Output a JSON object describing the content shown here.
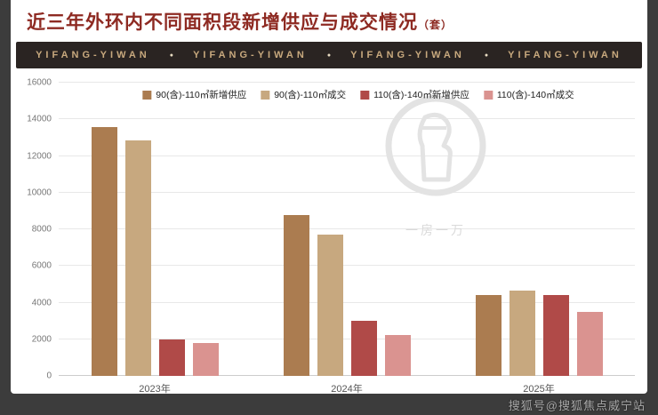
{
  "page": {
    "title": "近三年外环内不同面积段新增供应与成交情况",
    "title_suffix": "（套）",
    "banner_items": [
      "YIFANG-YIWAN",
      "YIFANG-YIWAN",
      "YIFANG-YIWAN",
      "YIFANG-YIWAN"
    ],
    "watermark_caption": "一房一万",
    "bottom_watermark": "搜狐号@搜狐焦点威宁站"
  },
  "colors": {
    "title": "#8e2a22",
    "banner_bg": "#2a2422",
    "banner_text": "#c8a97e",
    "page_bg": "#3c3c3c",
    "card_bg": "#ffffff",
    "series1": "#ab7c50",
    "series2": "#c7a87f",
    "series3": "#b04a48",
    "series4": "#da9390"
  },
  "chart_data": {
    "type": "bar",
    "title": "近三年外环内不同面积段新增供应与成交情况（套）",
    "categories": [
      "2023年",
      "2024年",
      "2025年"
    ],
    "series": [
      {
        "name": "90(含)-110㎡新增供应",
        "color": "#ab7c50",
        "values": [
          13600,
          8800,
          4400
        ]
      },
      {
        "name": "90(含)-110㎡成交",
        "color": "#c7a87f",
        "values": [
          12850,
          7700,
          4650
        ]
      },
      {
        "name": "110(含)-140㎡新增供应",
        "color": "#b04a48",
        "values": [
          2000,
          3000,
          4400
        ]
      },
      {
        "name": "110(含)-140㎡成交",
        "color": "#da9390",
        "values": [
          1800,
          2250,
          3500
        ]
      }
    ],
    "xlabel": "",
    "ylabel": "",
    "ylim": [
      0,
      16000
    ],
    "ytick_step": 2000,
    "grid": true,
    "legend_position": "top"
  }
}
